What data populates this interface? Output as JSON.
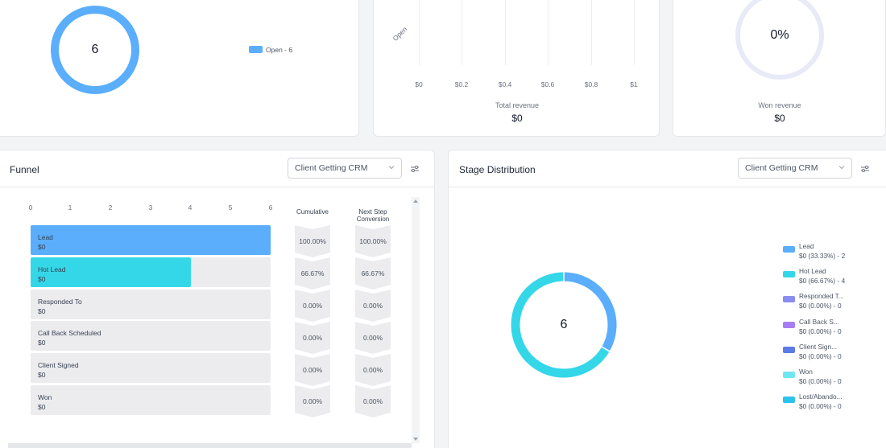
{
  "top_left": {
    "center_value": "6",
    "legend_label": "Open - 6",
    "legend_color": "#5aaefb"
  },
  "top_middle": {
    "category_label": "Open",
    "x_ticks": [
      "$0",
      "$0.2",
      "$0.4",
      "$0.6",
      "$0.8",
      "$1"
    ],
    "metric_label": "Total revenue",
    "metric_value": "$0"
  },
  "top_right": {
    "percent": "0%",
    "metric_label": "Won revenue",
    "metric_value": "$0"
  },
  "funnel": {
    "title": "Funnel",
    "select_value": "Client Getting CRM",
    "ticks": [
      "0",
      "1",
      "2",
      "3",
      "4",
      "5",
      "6"
    ],
    "cumulative_header": "Cumulative",
    "next_step_header": "Next Step Conversion",
    "rows": [
      {
        "name": "Lead",
        "value": "$0",
        "count": 6,
        "color": "#5aaefb",
        "cumulative": "100.00%",
        "next": "100.00%"
      },
      {
        "name": "Hot Lead",
        "value": "$0",
        "count": 4,
        "color": "#34d7e8",
        "cumulative": "66.67%",
        "next": "66.67%"
      },
      {
        "name": "Responded To",
        "value": "$0",
        "count": 0,
        "color": "#ececef",
        "cumulative": "0.00%",
        "next": "0.00%"
      },
      {
        "name": "Call Back Scheduled",
        "value": "$0",
        "count": 0,
        "color": "#ececef",
        "cumulative": "0.00%",
        "next": "0.00%"
      },
      {
        "name": "Client Signed",
        "value": "$0",
        "count": 0,
        "color": "#ececef",
        "cumulative": "0.00%",
        "next": "0.00%"
      },
      {
        "name": "Won",
        "value": "$0",
        "count": 0,
        "color": "#ececef",
        "cumulative": "0.00%",
        "next": "0.00%"
      }
    ]
  },
  "stage_distribution": {
    "title": "Stage Distribution",
    "select_value": "Client Getting CRM",
    "center_value": "6",
    "legend": [
      {
        "name": "Lead",
        "detail": "$0 (33.33%) - 2",
        "color": "#5aaefb",
        "share": 33.33
      },
      {
        "name": "Hot Lead",
        "detail": "$0 (66.67%) - 4",
        "color": "#34d7e8",
        "share": 66.67
      },
      {
        "name": "Responded T...",
        "detail": "$0 (0.00%) - 0",
        "color": "#8b8cf0",
        "share": 0
      },
      {
        "name": "Call Back S...",
        "detail": "$0 (0.00%) - 0",
        "color": "#a77df3",
        "share": 0
      },
      {
        "name": "Client Sign...",
        "detail": "$0 (0.00%) - 0",
        "color": "#5b7be8",
        "share": 0
      },
      {
        "name": "Won",
        "detail": "$0 (0.00%) - 0",
        "color": "#6fe7f2",
        "share": 0
      },
      {
        "name": "Lost/Abando...",
        "detail": "$0 (0.00%) - 0",
        "color": "#2bc3ea",
        "share": 0
      }
    ]
  }
}
